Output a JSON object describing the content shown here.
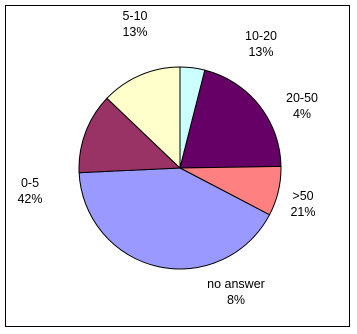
{
  "chart_data": {
    "type": "pie",
    "title": "",
    "start_angle_deg": 0,
    "direction": "clockwise",
    "slice_outline": "#000000",
    "slices": [
      {
        "label": "20-50",
        "percent_label": "4%",
        "value": 4,
        "color": "#ccffff"
      },
      {
        "label": ">50",
        "percent_label": "21%",
        "value": 21,
        "color": "#660066"
      },
      {
        "label": "no answer",
        "percent_label": "8%",
        "value": 8,
        "color": "#ff8080"
      },
      {
        "label": "0-5",
        "percent_label": "42%",
        "value": 42,
        "color": "#9999ff"
      },
      {
        "label": "5-10",
        "percent_label": "13%",
        "value": 13,
        "color": "#993366"
      },
      {
        "label": "10-20",
        "percent_label": "13%",
        "value": 13,
        "color": "#ffffcc"
      }
    ],
    "legend": "none"
  }
}
